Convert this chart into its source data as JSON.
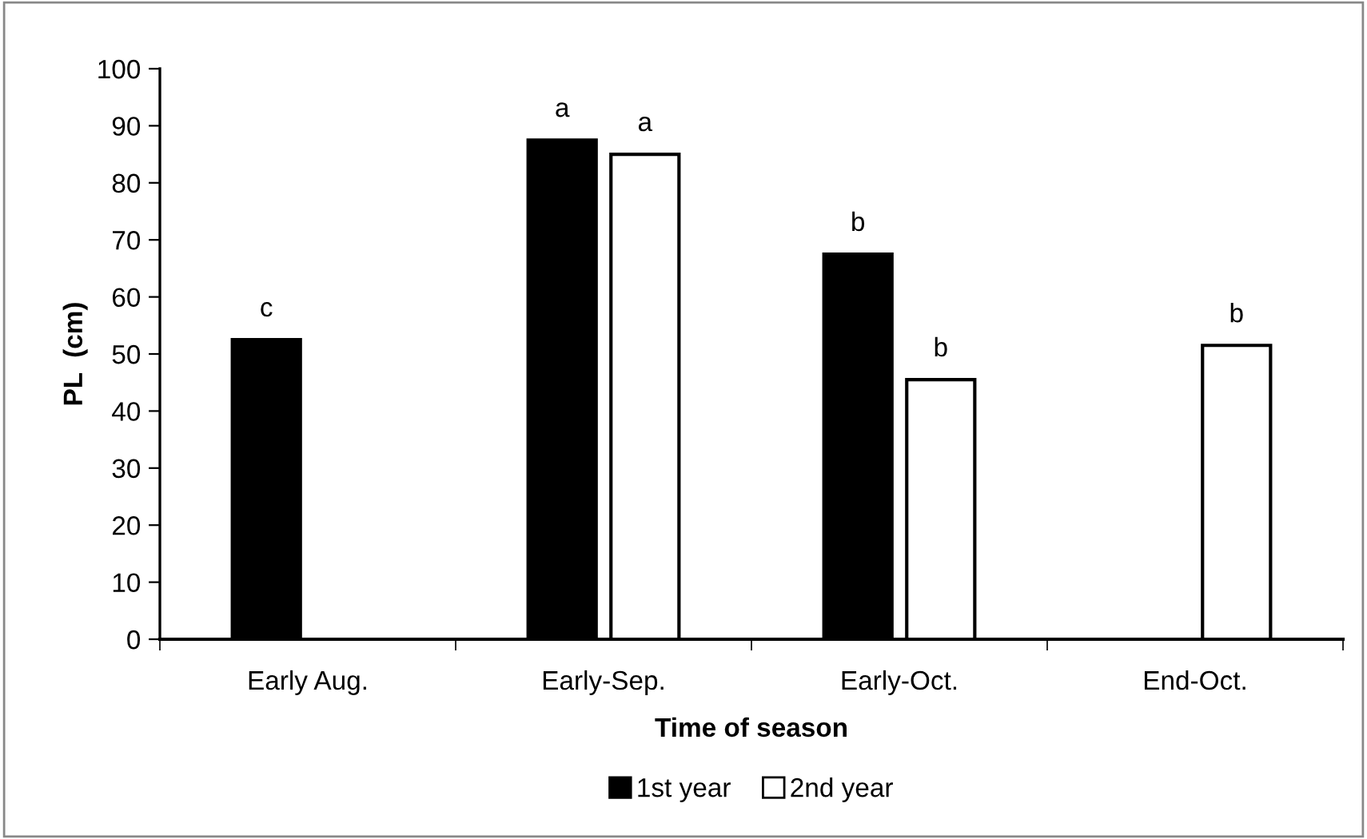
{
  "chart_data": {
    "type": "bar",
    "xlabel": "Time of season",
    "ylabel": "PL  (cm)",
    "categories": [
      "Early Aug.",
      "Early-Sep.",
      "Early-Oct.",
      "End-Oct."
    ],
    "series": [
      {
        "name": "1st year",
        "color": "#000000",
        "values": [
          52.5,
          87.5,
          67.5,
          null
        ]
      },
      {
        "name": "2nd year",
        "color": "#ffffff",
        "values": [
          null,
          85,
          45.5,
          51.5
        ]
      }
    ],
    "annotations": [
      {
        "text": "c",
        "x": "Early Aug.",
        "y": 52.5
      },
      {
        "text": "a",
        "x": "Early-Sep.",
        "y": 87.5
      },
      {
        "text": "a",
        "x": "Early-Sep.",
        "y": 85
      },
      {
        "text": "b",
        "x": "Early-Oct.",
        "y": 67.5
      },
      {
        "text": "b",
        "x": "Early-Oct.",
        "y": 45.5
      },
      {
        "text": "b",
        "x": "End-Oct.",
        "y": 51.5
      }
    ],
    "ylim": [
      0,
      100
    ],
    "yticks": [
      0,
      10,
      20,
      30,
      40,
      50,
      60,
      70,
      80,
      90,
      100
    ],
    "grid": false,
    "legend": "bottom"
  }
}
